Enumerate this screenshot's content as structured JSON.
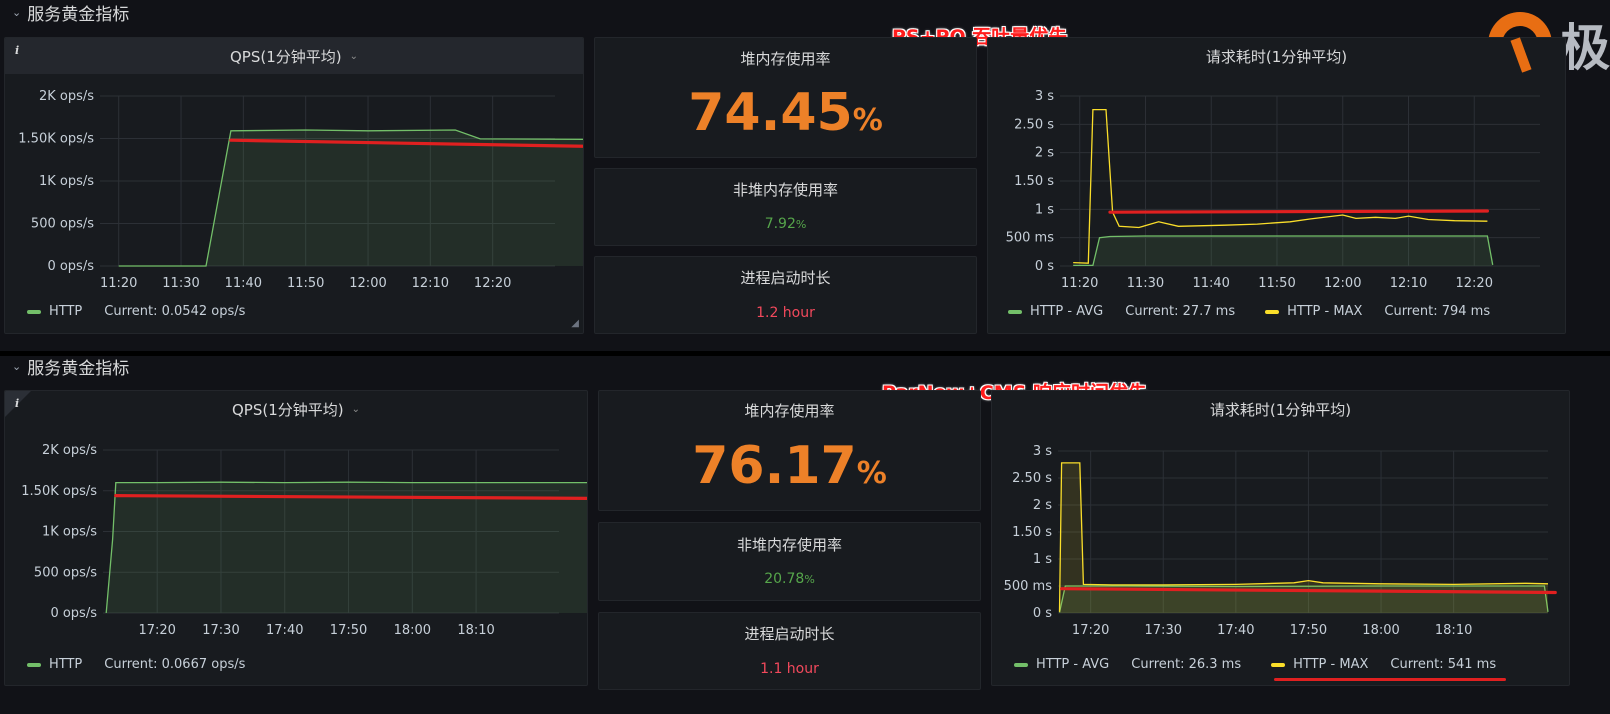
{
  "top": {
    "row_title": "服务黄金指标",
    "note": "PS+PO 吞吐量优先",
    "logo_text": "极",
    "qps": {
      "title": "QPS(1分钟平均)",
      "info": "i",
      "legend": [
        {
          "label": "HTTP",
          "current": "Current: 0.0542 ops/s",
          "color": "#73bf69"
        }
      ],
      "chart_data": {
        "type": "area",
        "series": [
          {
            "name": "HTTP",
            "color": "#73bf69",
            "points": [
              [
                0,
                0
              ],
              [
                14,
                0
              ],
              [
                18,
                1590
              ],
              [
                30,
                1600
              ],
              [
                40,
                1590
              ],
              [
                54,
                1600
              ],
              [
                58,
                1495
              ],
              [
                75,
                1490
              ],
              [
                87,
                1490
              ],
              [
                89,
                0
              ]
            ]
          }
        ],
        "annotation_line": {
          "color": "#e02020",
          "points": [
            [
              18,
              1480
            ],
            [
              89,
              1390
            ]
          ]
        },
        "x_ticks": [
          {
            "label": "11:20",
            "t": 0
          },
          {
            "label": "11:30",
            "t": 10
          },
          {
            "label": "11:40",
            "t": 20
          },
          {
            "label": "11:50",
            "t": 30
          },
          {
            "label": "12:00",
            "t": 40
          },
          {
            "label": "12:10",
            "t": 50
          },
          {
            "label": "12:20",
            "t": 60
          }
        ],
        "y_ticks": [
          {
            "label": "2K ops/s",
            "v": 2000
          },
          {
            "label": "1.50K ops/s",
            "v": 1500
          },
          {
            "label": "1K ops/s",
            "v": 1000
          },
          {
            "label": "500 ops/s",
            "v": 500
          },
          {
            "label": "0 ops/s",
            "v": 0
          }
        ],
        "xlim": [
          -3,
          70
        ],
        "ylim": [
          0,
          2000
        ],
        "grid": true
      }
    },
    "heap": {
      "title": "堆内存使用率",
      "value": "74.45",
      "unit": "%"
    },
    "nonheap": {
      "title": "非堆内存使用率",
      "value": "7.92",
      "unit": "%",
      "color": "#56a64b"
    },
    "uptime": {
      "title": "进程启动时长",
      "value": "1.2 hour",
      "color": "#f2495c"
    },
    "latency": {
      "title": "请求耗时(1分钟平均)",
      "legend": [
        {
          "label": "HTTP - AVG",
          "current": "Current: 27.7 ms",
          "color": "#73bf69"
        },
        {
          "label": "HTTP - MAX",
          "current": "Current: 794 ms",
          "color": "#fade2a"
        }
      ],
      "chart_data": {
        "type": "line",
        "series": [
          {
            "name": "HTTP - AVG",
            "color": "#73bf69",
            "fill": true,
            "points": [
              [
                -1,
                0.01
              ],
              [
                1,
                0.01
              ],
              [
                2,
                0.01
              ],
              [
                3,
                0.5
              ],
              [
                4.6,
                0.52
              ],
              [
                10,
                0.53
              ],
              [
                20,
                0.53
              ],
              [
                40,
                0.53
              ],
              [
                55,
                0.53
              ],
              [
                62,
                0.53
              ],
              [
                62.8,
                0.02
              ]
            ]
          },
          {
            "name": "HTTP - MAX",
            "color": "#fade2a",
            "fill": false,
            "points": [
              [
                -1,
                0.06
              ],
              [
                1.3,
                0.05
              ],
              [
                2,
                2.76
              ],
              [
                4,
                2.76
              ],
              [
                5,
                0.95
              ],
              [
                6,
                0.7
              ],
              [
                9,
                0.68
              ],
              [
                12,
                0.78
              ],
              [
                15,
                0.7
              ],
              [
                22,
                0.72
              ],
              [
                27,
                0.74
              ],
              [
                32,
                0.78
              ],
              [
                35,
                0.83
              ],
              [
                40,
                0.9
              ],
              [
                42,
                0.84
              ],
              [
                45,
                0.86
              ],
              [
                48,
                0.84
              ],
              [
                50,
                0.88
              ],
              [
                53,
                0.82
              ],
              [
                57,
                0.8
              ],
              [
                62,
                0.79
              ]
            ]
          }
        ],
        "annotation_line": {
          "color": "#e02020",
          "points": [
            [
              4.6,
              0.95
            ],
            [
              62,
              0.97
            ]
          ]
        },
        "x_ticks": [
          {
            "label": "11:20",
            "t": 0
          },
          {
            "label": "11:30",
            "t": 10
          },
          {
            "label": "11:40",
            "t": 20
          },
          {
            "label": "11:50",
            "t": 30
          },
          {
            "label": "12:00",
            "t": 40
          },
          {
            "label": "12:10",
            "t": 50
          },
          {
            "label": "12:20",
            "t": 60
          }
        ],
        "y_ticks": [
          {
            "label": "3 s",
            "v": 3
          },
          {
            "label": "2.50 s",
            "v": 2.5
          },
          {
            "label": "2 s",
            "v": 2
          },
          {
            "label": "1.50 s",
            "v": 1.5
          },
          {
            "label": "1 s",
            "v": 1
          },
          {
            "label": "500 ms",
            "v": 0.5
          },
          {
            "label": "0 s",
            "v": 0
          }
        ],
        "xlim": [
          -3,
          70
        ],
        "ylim": [
          0,
          3
        ],
        "grid": true
      }
    }
  },
  "bottom": {
    "row_title": "服务黄金指标",
    "note": "ParNew+CMS 响应时间优先",
    "qps": {
      "title": "QPS(1分钟平均)",
      "info": "i",
      "legend": [
        {
          "label": "HTTP",
          "current": "Current: 0.0667 ops/s",
          "color": "#73bf69"
        }
      ],
      "chart_data": {
        "type": "area",
        "series": [
          {
            "name": "HTTP",
            "color": "#73bf69",
            "points": [
              [
                -8,
                0
              ],
              [
                -7,
                900
              ],
              [
                -6.5,
                1600
              ],
              [
                0,
                1600
              ],
              [
                10,
                1605
              ],
              [
                20,
                1600
              ],
              [
                30,
                1605
              ],
              [
                40,
                1600
              ],
              [
                50,
                1600
              ],
              [
                60,
                1600
              ],
              [
                70,
                1600
              ],
              [
                82,
                1600
              ],
              [
                82.5,
                0
              ]
            ]
          }
        ],
        "annotation_line": {
          "color": "#e02020",
          "points": [
            [
              -6.5,
              1440
            ],
            [
              82,
              1400
            ]
          ]
        },
        "x_ticks": [
          {
            "label": "17:20",
            "t": 0
          },
          {
            "label": "17:30",
            "t": 10
          },
          {
            "label": "17:40",
            "t": 20
          },
          {
            "label": "17:50",
            "t": 30
          },
          {
            "label": "18:00",
            "t": 40
          },
          {
            "label": "18:10",
            "t": 50
          }
        ],
        "y_ticks": [
          {
            "label": "2K ops/s",
            "v": 2000
          },
          {
            "label": "1.50K ops/s",
            "v": 1500
          },
          {
            "label": "1K ops/s",
            "v": 1000
          },
          {
            "label": "500 ops/s",
            "v": 500
          },
          {
            "label": "0 ops/s",
            "v": 0
          }
        ],
        "xlim": [
          -8.5,
          63
        ],
        "ylim": [
          0,
          2000
        ],
        "grid": true
      }
    },
    "heap": {
      "title": "堆内存使用率",
      "value": "76.17",
      "unit": "%"
    },
    "nonheap": {
      "title": "非堆内存使用率",
      "value": "20.78",
      "unit": "%",
      "color": "#56a64b"
    },
    "uptime": {
      "title": "进程启动时长",
      "value": "1.1 hour",
      "color": "#f2495c"
    },
    "latency": {
      "title": "请求耗时(1分钟平均)",
      "legend": [
        {
          "label": "HTTP - AVG",
          "current": "Current: 26.3 ms",
          "color": "#73bf69"
        },
        {
          "label": "HTTP - MAX",
          "current": "Current: 541 ms",
          "color": "#fade2a"
        }
      ],
      "chart_data": {
        "type": "line",
        "series": [
          {
            "name": "HTTP - AVG",
            "color": "#73bf69",
            "fill": true,
            "points": [
              [
                -4.3,
                0.01
              ],
              [
                -3.5,
                0.5
              ],
              [
                5,
                0.5
              ],
              [
                20,
                0.49
              ],
              [
                40,
                0.5
              ],
              [
                62.5,
                0.5
              ],
              [
                63,
                0.02
              ]
            ]
          },
          {
            "name": "HTTP - MAX",
            "color": "#fade2a",
            "fill": true,
            "points": [
              [
                -4.3,
                0.02
              ],
              [
                -4,
                2.78
              ],
              [
                -1.5,
                2.78
              ],
              [
                -1,
                0.53
              ],
              [
                3,
                0.52
              ],
              [
                10,
                0.52
              ],
              [
                20,
                0.53
              ],
              [
                28,
                0.56
              ],
              [
                30,
                0.6
              ],
              [
                32,
                0.56
              ],
              [
                40,
                0.54
              ],
              [
                50,
                0.53
              ],
              [
                60,
                0.55
              ],
              [
                63,
                0.54
              ]
            ]
          }
        ],
        "annotation_line": {
          "color": "#e02020",
          "points": [
            [
              -4,
              0.45
            ],
            [
              64,
              0.38
            ]
          ]
        },
        "x_ticks": [
          {
            "label": "17:20",
            "t": 0
          },
          {
            "label": "17:30",
            "t": 10
          },
          {
            "label": "17:40",
            "t": 20
          },
          {
            "label": "17:50",
            "t": 30
          },
          {
            "label": "18:00",
            "t": 40
          },
          {
            "label": "18:10",
            "t": 50
          }
        ],
        "y_ticks": [
          {
            "label": "3 s",
            "v": 3
          },
          {
            "label": "2.50 s",
            "v": 2.5
          },
          {
            "label": "2 s",
            "v": 2
          },
          {
            "label": "1.50 s",
            "v": 1.5
          },
          {
            "label": "1 s",
            "v": 1
          },
          {
            "label": "500 ms",
            "v": 0.5
          },
          {
            "label": "0 s",
            "v": 0
          }
        ],
        "xlim": [
          -4.5,
          63
        ],
        "ylim": [
          0,
          3
        ],
        "grid": true
      }
    }
  }
}
